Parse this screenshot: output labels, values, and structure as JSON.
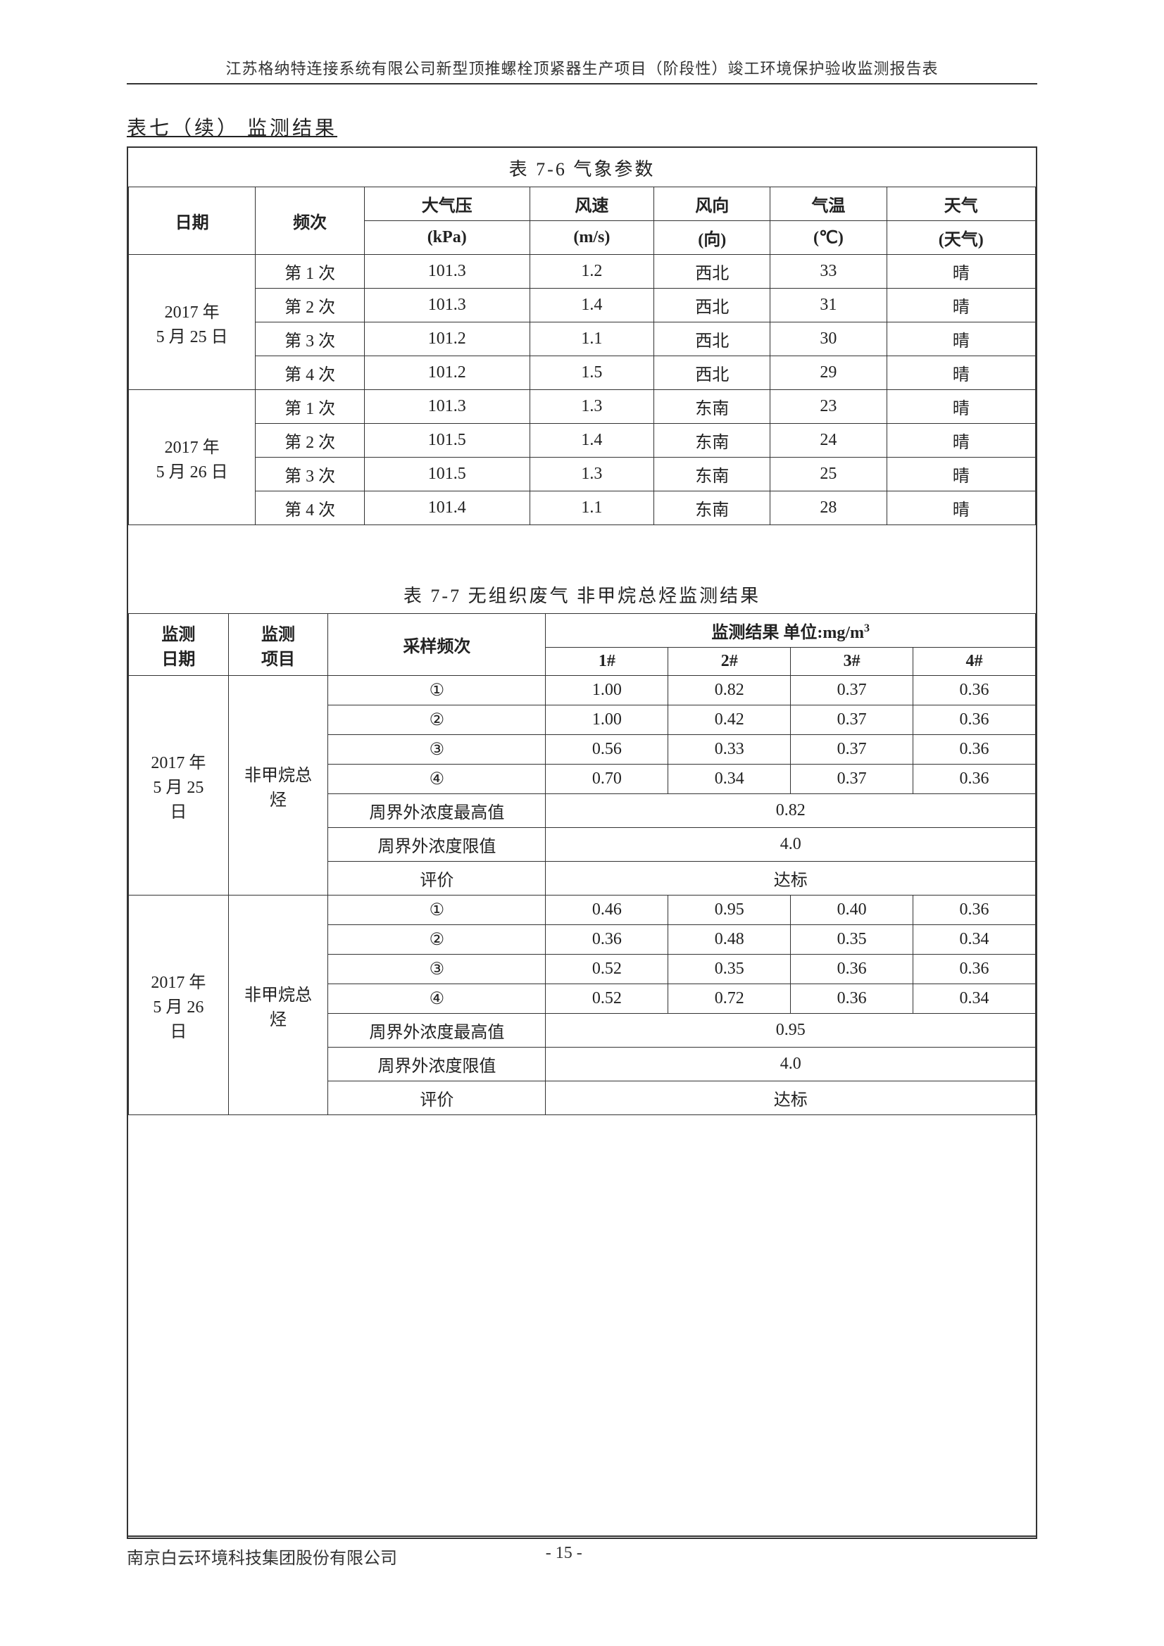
{
  "header": "江苏格纳特连接系统有限公司新型顶推螺栓顶紧器生产项目（阶段性）竣工环境保护验收监测报告表",
  "section_title": "表七（续）  监测结果",
  "table76": {
    "title": "表 7-6   气象参数",
    "headers": {
      "date": "日期",
      "freq": "频次",
      "pressure": "大气压",
      "pressure_unit": "(kPa)",
      "wind_speed": "风速",
      "wind_speed_unit": "(m/s)",
      "wind_dir": "风向",
      "wind_dir_unit": "(向)",
      "temp": "气温",
      "temp_unit": "(℃)",
      "weather": "天气",
      "weather_unit": "(天气)"
    },
    "rows": [
      {
        "date": "2017 年\n5 月 25 日",
        "freq": "第 1 次",
        "p": "101.3",
        "ws": "1.2",
        "wd": "西北",
        "t": "33",
        "w": "晴"
      },
      {
        "freq": "第 2 次",
        "p": "101.3",
        "ws": "1.4",
        "wd": "西北",
        "t": "31",
        "w": "晴"
      },
      {
        "freq": "第 3 次",
        "p": "101.2",
        "ws": "1.1",
        "wd": "西北",
        "t": "30",
        "w": "晴"
      },
      {
        "freq": "第 4 次",
        "p": "101.2",
        "ws": "1.5",
        "wd": "西北",
        "t": "29",
        "w": "晴"
      },
      {
        "date": "2017 年\n5 月 26 日",
        "freq": "第 1 次",
        "p": "101.3",
        "ws": "1.3",
        "wd": "东南",
        "t": "23",
        "w": "晴"
      },
      {
        "freq": "第 2 次",
        "p": "101.5",
        "ws": "1.4",
        "wd": "东南",
        "t": "24",
        "w": "晴"
      },
      {
        "freq": "第 3 次",
        "p": "101.5",
        "ws": "1.3",
        "wd": "东南",
        "t": "25",
        "w": "晴"
      },
      {
        "freq": "第 4 次",
        "p": "101.4",
        "ws": "1.1",
        "wd": "东南",
        "t": "28",
        "w": "晴"
      }
    ]
  },
  "table77": {
    "title": "表 7-7   无组织废气 非甲烷总烃监测结果",
    "headers": {
      "date": "监测\n日期",
      "item": "监测\n项目",
      "freq": "采样频次",
      "result_header": "监测结果    单位:mg/m",
      "c1": "1#",
      "c2": "2#",
      "c3": "3#",
      "c4": "4#"
    },
    "labels": {
      "max": "周界外浓度最高值",
      "limit": "周界外浓度限值",
      "eval": "评价"
    },
    "groups": [
      {
        "date": "2017 年\n5 月 25\n日",
        "item": "非甲烷总\n烃",
        "rows": [
          {
            "f": "①",
            "v": [
              "1.00",
              "0.82",
              "0.37",
              "0.36"
            ]
          },
          {
            "f": "②",
            "v": [
              "1.00",
              "0.42",
              "0.37",
              "0.36"
            ]
          },
          {
            "f": "③",
            "v": [
              "0.56",
              "0.33",
              "0.37",
              "0.36"
            ]
          },
          {
            "f": "④",
            "v": [
              "0.70",
              "0.34",
              "0.37",
              "0.36"
            ]
          }
        ],
        "max": "0.82",
        "limit": "4.0",
        "eval": "达标"
      },
      {
        "date": "2017 年\n5 月 26\n日",
        "item": "非甲烷总\n烃",
        "rows": [
          {
            "f": "①",
            "v": [
              "0.46",
              "0.95",
              "0.40",
              "0.36"
            ]
          },
          {
            "f": "②",
            "v": [
              "0.36",
              "0.48",
              "0.35",
              "0.34"
            ]
          },
          {
            "f": "③",
            "v": [
              "0.52",
              "0.35",
              "0.36",
              "0.36"
            ]
          },
          {
            "f": "④",
            "v": [
              "0.52",
              "0.72",
              "0.36",
              "0.34"
            ]
          }
        ],
        "max": "0.95",
        "limit": "4.0",
        "eval": "达标"
      }
    ]
  },
  "footer": {
    "company": "南京白云环境科技集团股份有限公司",
    "page": "- 15 -"
  }
}
